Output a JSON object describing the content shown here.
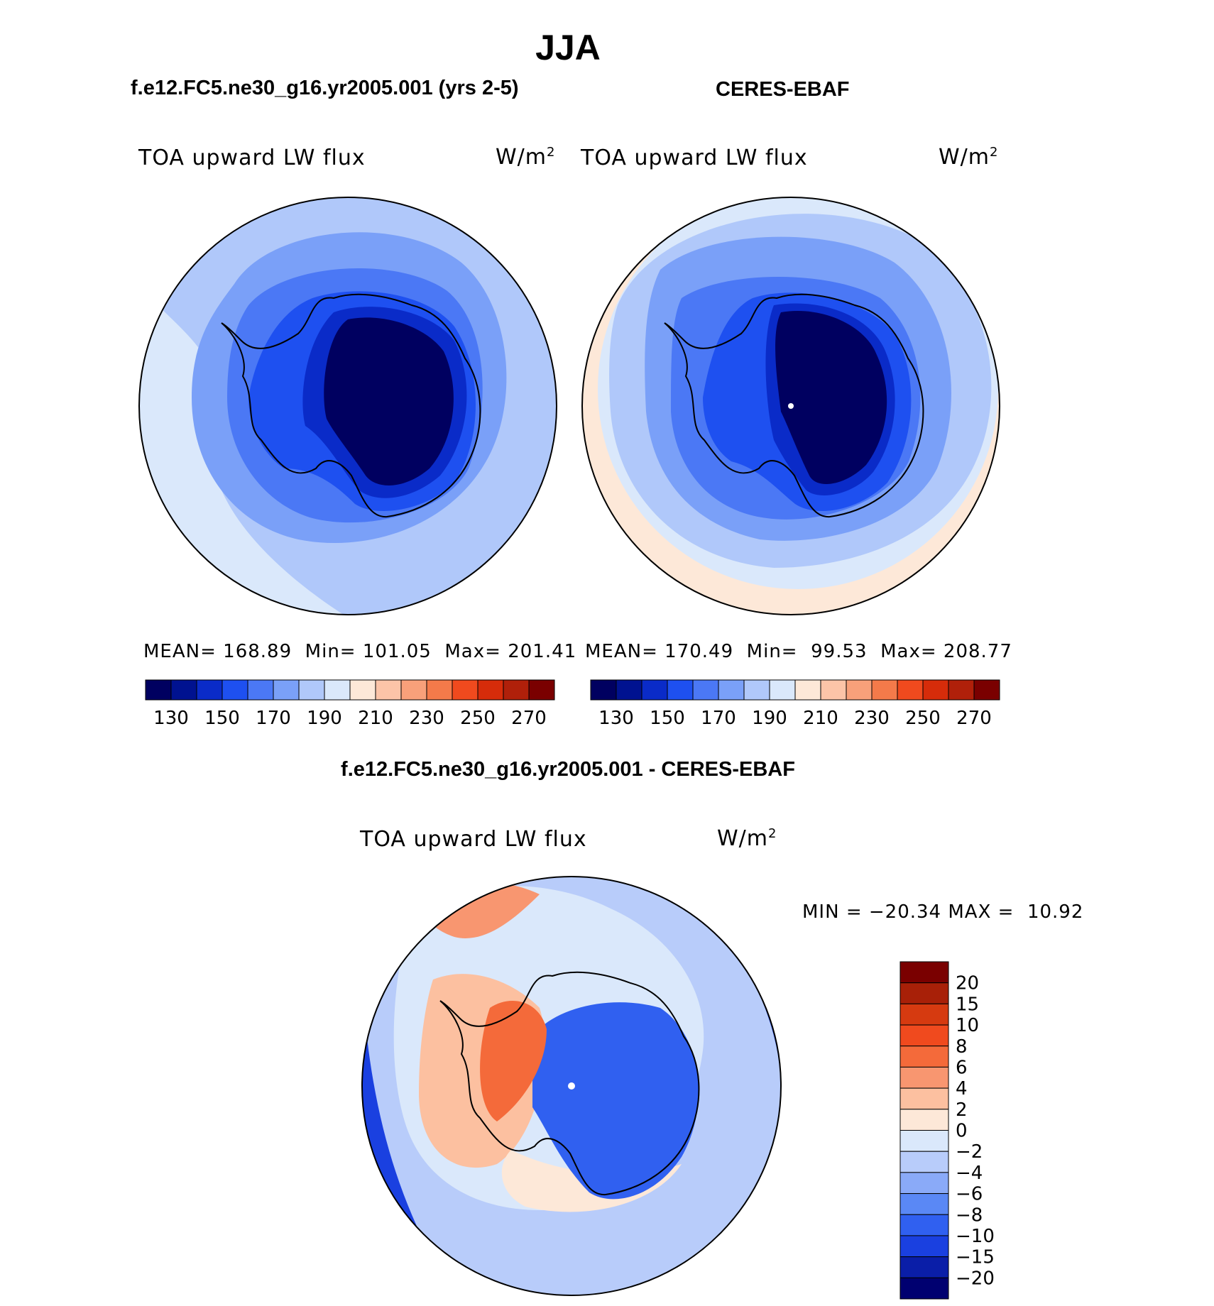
{
  "title": "JJA",
  "panels": {
    "model": {
      "header": "f.e12.FC5.ne30_g16.yr2005.001 (yrs 2-5)",
      "var_label": "TOA upward LW flux",
      "units_base": "W/m",
      "units_exp": "2",
      "stats": {
        "mean_label": "MEAN=",
        "mean": "168.89",
        "min_label": "Min=",
        "min": "101.05",
        "max_label": "Max=",
        "max": "201.41"
      }
    },
    "obs": {
      "header": "CERES-EBAF",
      "var_label": "TOA upward LW flux",
      "units_base": "W/m",
      "units_exp": "2",
      "stats": {
        "mean_label": "MEAN=",
        "mean": "170.49",
        "min_label": "Min=",
        "min": "99.53",
        "max_label": "Max=",
        "max": "208.77"
      }
    },
    "diff": {
      "header": "f.e12.FC5.ne30_g16.yr2005.001 - CERES-EBAF",
      "var_label": "TOA upward LW flux",
      "units_base": "W/m",
      "units_exp": "2",
      "minmax": "MIN = −20.34 MAX =  10.92"
    }
  },
  "colors": {
    "abs_scale": [
      "#000060",
      "#001290",
      "#0a2bc8",
      "#1e50f0",
      "#4b78f5",
      "#7aa0f8",
      "#b0c8fa",
      "#dae8fb",
      "#fde8d8",
      "#fcc4a8",
      "#f8a07a",
      "#f47a4a",
      "#f04a1e",
      "#d62c0a",
      "#b0200a",
      "#7a0000"
    ],
    "diff_scale": [
      "#000070",
      "#0a1ea8",
      "#1a40e0",
      "#3060f0",
      "#5a88f5",
      "#8aaaf8",
      "#b8ccfa",
      "#dae8fb",
      "#fde8d8",
      "#fcc0a0",
      "#f89670",
      "#f46a3a",
      "#f04a1e",
      "#d63a10",
      "#a82008",
      "#7a0000"
    ]
  },
  "chart_data": [
    {
      "type": "heatmap",
      "projection": "south-polar-stereographic",
      "title": "TOA upward LW flux",
      "subtitle": "f.e12.FC5.ne30_g16.yr2005.001 (yrs 2-5)",
      "units": "W/m2",
      "levels": [
        130,
        140,
        150,
        160,
        170,
        180,
        190,
        200,
        210,
        220,
        230,
        240,
        250,
        260,
        270
      ],
      "colorbar_labels": [
        "130",
        "150",
        "170",
        "190",
        "210",
        "230",
        "250",
        "270"
      ],
      "stats": {
        "mean": 168.89,
        "min": 101.05,
        "max": 201.41
      }
    },
    {
      "type": "heatmap",
      "projection": "south-polar-stereographic",
      "title": "TOA upward LW flux",
      "subtitle": "CERES-EBAF",
      "units": "W/m2",
      "levels": [
        130,
        140,
        150,
        160,
        170,
        180,
        190,
        200,
        210,
        220,
        230,
        240,
        250,
        260,
        270
      ],
      "colorbar_labels": [
        "130",
        "150",
        "170",
        "190",
        "210",
        "230",
        "250",
        "270"
      ],
      "stats": {
        "mean": 170.49,
        "min": 99.53,
        "max": 208.77
      }
    },
    {
      "type": "heatmap",
      "projection": "south-polar-stereographic",
      "title": "TOA upward LW flux",
      "subtitle": "f.e12.FC5.ne30_g16.yr2005.001 - CERES-EBAF",
      "units": "W/m2",
      "levels": [
        -20,
        -15,
        -10,
        -8,
        -6,
        -4,
        -2,
        0,
        2,
        4,
        6,
        8,
        10,
        15,
        20
      ],
      "colorbar_labels": [
        "20",
        "15",
        "10",
        "8",
        "6",
        "4",
        "2",
        "0",
        "−2",
        "−4",
        "−6",
        "−8",
        "−10",
        "−15",
        "−20"
      ],
      "stats": {
        "min": -20.34,
        "max": 10.92
      }
    }
  ]
}
